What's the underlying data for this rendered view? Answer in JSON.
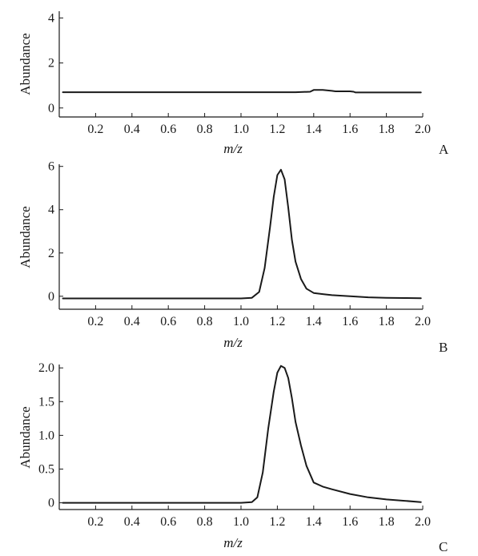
{
  "chart_data": [
    {
      "type": "line",
      "panel_label": "A",
      "xlabel": "m/z",
      "ylabel": "Abundance",
      "xlim": [
        0,
        2.0
      ],
      "ylim": [
        -0.4,
        4.3
      ],
      "x_ticks": [
        0.2,
        0.4,
        0.6,
        0.8,
        1.0,
        1.2,
        1.4,
        1.6,
        1.8,
        2.0
      ],
      "x_tick_labels": [
        "0.2",
        "0.4",
        "0.6",
        "0.8",
        "1.0",
        "1.2",
        "1.4",
        "1.6",
        "1.8",
        "2.0"
      ],
      "y_ticks": [
        0,
        2,
        4
      ],
      "y_tick_labels": [
        "0",
        "2",
        "4"
      ],
      "grid": false,
      "series": [
        {
          "x": [
            0.02,
            0.5,
            1.0,
            1.3,
            1.38,
            1.4,
            1.45,
            1.5,
            1.52,
            1.6,
            1.62,
            1.63,
            1.7,
            1.8,
            1.9,
            1.99
          ],
          "y": [
            0.7,
            0.7,
            0.7,
            0.7,
            0.72,
            0.8,
            0.8,
            0.76,
            0.74,
            0.74,
            0.72,
            0.69,
            0.69,
            0.69,
            0.69,
            0.69
          ]
        }
      ]
    },
    {
      "type": "line",
      "panel_label": "B",
      "xlabel": "m/z",
      "ylabel": "Abundance",
      "xlim": [
        0,
        2.0
      ],
      "ylim": [
        -0.6,
        6.1
      ],
      "x_ticks": [
        0.2,
        0.4,
        0.6,
        0.8,
        1.0,
        1.2,
        1.4,
        1.6,
        1.8,
        2.0
      ],
      "x_tick_labels": [
        "0.2",
        "0.4",
        "0.6",
        "0.8",
        "1.0",
        "1.2",
        "1.4",
        "1.6",
        "1.8",
        "2.0"
      ],
      "y_ticks": [
        0,
        2,
        4,
        6
      ],
      "y_tick_labels": [
        "0",
        "2",
        "4",
        "6"
      ],
      "grid": false,
      "series": [
        {
          "x": [
            0.02,
            0.5,
            1.0,
            1.06,
            1.1,
            1.13,
            1.16,
            1.18,
            1.2,
            1.22,
            1.24,
            1.26,
            1.28,
            1.3,
            1.33,
            1.36,
            1.4,
            1.45,
            1.5,
            1.6,
            1.7,
            1.8,
            1.9,
            1.99
          ],
          "y": [
            -0.1,
            -0.1,
            -0.1,
            -0.07,
            0.2,
            1.3,
            3.2,
            4.6,
            5.6,
            5.85,
            5.4,
            4.1,
            2.6,
            1.6,
            0.8,
            0.35,
            0.15,
            0.1,
            0.05,
            0.0,
            -0.05,
            -0.07,
            -0.08,
            -0.09
          ]
        }
      ]
    },
    {
      "type": "line",
      "panel_label": "C",
      "xlabel": "m/z",
      "ylabel": "Abundance",
      "xlim": [
        0,
        2.0
      ],
      "ylim": [
        -0.1,
        2.05
      ],
      "x_ticks": [
        0.2,
        0.4,
        0.6,
        0.8,
        1.0,
        1.2,
        1.4,
        1.6,
        1.8,
        2.0
      ],
      "x_tick_labels": [
        "0.2",
        "0.4",
        "0.6",
        "0.8",
        "1.0",
        "1.2",
        "1.4",
        "1.6",
        "1.8",
        "2.0"
      ],
      "y_ticks": [
        0,
        0.5,
        1.0,
        1.5,
        2.0
      ],
      "y_tick_labels": [
        "0",
        "0.5",
        "1.0",
        "1.5",
        "2.0"
      ],
      "grid": false,
      "series": [
        {
          "x": [
            0.02,
            0.5,
            1.0,
            1.06,
            1.09,
            1.12,
            1.15,
            1.18,
            1.2,
            1.22,
            1.24,
            1.26,
            1.28,
            1.3,
            1.33,
            1.36,
            1.4,
            1.45,
            1.5,
            1.6,
            1.7,
            1.8,
            1.9,
            1.99
          ],
          "y": [
            0.0,
            0.0,
            0.0,
            0.01,
            0.08,
            0.45,
            1.1,
            1.65,
            1.93,
            2.03,
            2.0,
            1.85,
            1.55,
            1.2,
            0.85,
            0.55,
            0.3,
            0.24,
            0.2,
            0.13,
            0.08,
            0.05,
            0.03,
            0.01
          ]
        }
      ]
    }
  ]
}
